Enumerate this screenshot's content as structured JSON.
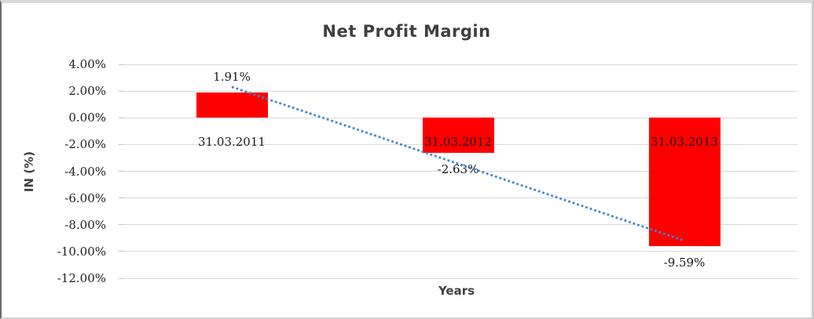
{
  "chart_data": {
    "type": "bar",
    "title": "Net Profit Margin",
    "xlabel": "Years",
    "ylabel": "IN (%)",
    "categories": [
      "31.03.2011",
      "31.03.2012",
      "31.03.2013"
    ],
    "values": [
      1.91,
      -2.63,
      -9.59
    ],
    "data_labels": [
      "1.91%",
      "-2.63%",
      "-9.59%"
    ],
    "ytick_labels": [
      "4.00%",
      "2.00%",
      "0.00%",
      "-2.00%",
      "-4.00%",
      "-6.00%",
      "-8.00%",
      "-10.00%",
      "-12.00%"
    ],
    "ytick_values": [
      4,
      2,
      0,
      -2,
      -4,
      -6,
      -8,
      -10,
      -12
    ],
    "ylim": [
      -12,
      4
    ],
    "grid": true,
    "legend": "none",
    "bar_color": "#FF0000",
    "gridline_color": "#D9D9D9",
    "tick_mark_color": "#C2C2C2",
    "title_color": "#404040",
    "label_color": "#1A1A1A",
    "trendline": {
      "type": "linear",
      "style": "dotted",
      "color": "#4484C8",
      "start_value": 2.31,
      "end_value": -9.19,
      "start_category_index": 0,
      "end_category_index": 2
    }
  }
}
